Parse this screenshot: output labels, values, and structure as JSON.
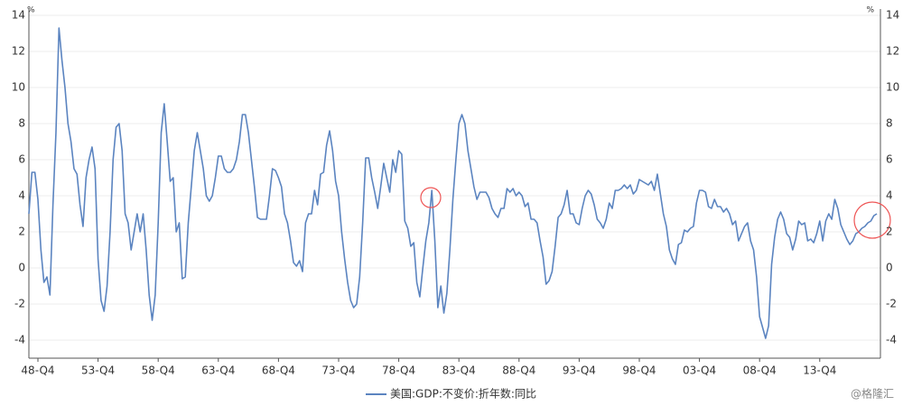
{
  "chart_data": {
    "type": "line",
    "unit": "%",
    "grid": true,
    "ylim": [
      -5,
      14
    ],
    "yticks": [
      -4,
      -2,
      0,
      2,
      4,
      6,
      8,
      10,
      12,
      14
    ],
    "watermark": "@格隆汇",
    "categories": [
      null,
      null,
      null,
      "48-Q4",
      null,
      null,
      null,
      null,
      null,
      null,
      null,
      null,
      null,
      null,
      null,
      null,
      null,
      null,
      null,
      null,
      null,
      null,
      null,
      "53-Q4",
      null,
      null,
      null,
      null,
      null,
      null,
      null,
      null,
      null,
      null,
      null,
      null,
      null,
      null,
      null,
      null,
      null,
      null,
      null,
      "58-Q4",
      null,
      null,
      null,
      null,
      null,
      null,
      null,
      null,
      null,
      null,
      null,
      null,
      null,
      null,
      null,
      null,
      null,
      null,
      null,
      "63-Q4",
      null,
      null,
      null,
      null,
      null,
      null,
      null,
      null,
      null,
      null,
      null,
      null,
      null,
      null,
      null,
      null,
      null,
      null,
      null,
      "68-Q4",
      null,
      null,
      null,
      null,
      null,
      null,
      null,
      null,
      null,
      null,
      null,
      null,
      null,
      null,
      null,
      null,
      null,
      null,
      null,
      "73-Q4",
      null,
      null,
      null,
      null,
      null,
      null,
      null,
      null,
      null,
      null,
      null,
      null,
      null,
      null,
      null,
      null,
      null,
      null,
      null,
      "78-Q4",
      null,
      null,
      null,
      null,
      null,
      null,
      null,
      null,
      null,
      null,
      null,
      null,
      null,
      null,
      null,
      null,
      null,
      null,
      null,
      "83-Q4",
      null,
      null,
      null,
      null,
      null,
      null,
      null,
      null,
      null,
      null,
      null,
      null,
      null,
      null,
      null,
      null,
      null,
      null,
      null,
      "88-Q4",
      null,
      null,
      null,
      null,
      null,
      null,
      null,
      null,
      null,
      null,
      null,
      null,
      null,
      null,
      null,
      null,
      null,
      null,
      null,
      "93-Q4",
      null,
      null,
      null,
      null,
      null,
      null,
      null,
      null,
      null,
      null,
      null,
      null,
      null,
      null,
      null,
      null,
      null,
      null,
      null,
      "98-Q4",
      null,
      null,
      null,
      null,
      null,
      null,
      null,
      null,
      null,
      null,
      null,
      null,
      null,
      null,
      null,
      null,
      null,
      null,
      null,
      "03-Q4",
      null,
      null,
      null,
      null,
      null,
      null,
      null,
      null,
      null,
      null,
      null,
      null,
      null,
      null,
      null,
      null,
      null,
      null,
      null,
      "08-Q4",
      null,
      null,
      null,
      null,
      null,
      null,
      null,
      null,
      null,
      null,
      null,
      null,
      null,
      null,
      null,
      null,
      null,
      null,
      null,
      "13-Q4",
      null,
      null,
      null,
      null,
      null,
      null,
      null,
      null,
      null,
      null,
      null,
      null,
      null,
      null,
      null,
      null,
      null,
      null,
      null
    ],
    "series": [
      {
        "name": "美国:GDP:不变价:折年数:同比",
        "color": "#5b84c0",
        "values": [
          3.0,
          5.3,
          5.3,
          3.8,
          1.0,
          -0.8,
          -0.5,
          -1.5,
          3.5,
          7.5,
          13.3,
          11.5,
          10.0,
          8.0,
          7.0,
          5.5,
          5.2,
          3.5,
          2.3,
          5.0,
          6.0,
          6.7,
          5.5,
          0.5,
          -1.8,
          -2.4,
          -1.0,
          2.0,
          6.0,
          7.8,
          8.0,
          6.5,
          3.0,
          2.5,
          1.0,
          2.0,
          3.0,
          2.0,
          3.0,
          1.0,
          -1.5,
          -2.9,
          -1.5,
          2.5,
          7.5,
          9.1,
          7.0,
          4.8,
          5.0,
          2.0,
          2.5,
          -0.6,
          -0.5,
          2.5,
          4.5,
          6.5,
          7.5,
          6.5,
          5.5,
          4.0,
          3.7,
          4.0,
          5.0,
          6.2,
          6.2,
          5.5,
          5.3,
          5.3,
          5.5,
          6.0,
          7.0,
          8.5,
          8.5,
          7.5,
          6.0,
          4.5,
          2.8,
          2.7,
          2.7,
          2.7,
          4.0,
          5.5,
          5.4,
          5.0,
          4.5,
          3.0,
          2.5,
          1.5,
          0.3,
          0.1,
          0.4,
          -0.2,
          2.5,
          3.0,
          3.0,
          4.3,
          3.5,
          5.2,
          5.3,
          6.8,
          7.6,
          6.5,
          4.8,
          4.0,
          2.0,
          0.5,
          -0.8,
          -1.8,
          -2.2,
          -2.0,
          -0.5,
          2.5,
          6.1,
          6.1,
          5.0,
          4.2,
          3.3,
          4.5,
          5.8,
          5.0,
          4.2,
          6.0,
          5.3,
          6.5,
          6.3,
          2.6,
          2.2,
          1.2,
          1.4,
          -0.8,
          -1.6,
          0.0,
          1.5,
          2.5,
          4.3,
          1.5,
          -2.2,
          -1.0,
          -2.5,
          -1.4,
          1.0,
          3.8,
          6.0,
          8.0,
          8.5,
          8.0,
          6.5,
          5.5,
          4.5,
          3.8,
          4.2,
          4.2,
          4.2,
          3.9,
          3.3,
          3.0,
          2.8,
          3.3,
          3.3,
          4.4,
          4.2,
          4.4,
          4.0,
          4.2,
          4.0,
          3.4,
          3.6,
          2.7,
          2.7,
          2.5,
          1.5,
          0.6,
          -0.9,
          -0.7,
          -0.2,
          1.2,
          2.8,
          3.0,
          3.5,
          4.3,
          3.0,
          3.0,
          2.5,
          2.4,
          3.3,
          4.0,
          4.3,
          4.1,
          3.5,
          2.7,
          2.5,
          2.2,
          2.7,
          3.6,
          3.3,
          4.3,
          4.3,
          4.4,
          4.6,
          4.4,
          4.6,
          4.1,
          4.3,
          4.9,
          4.8,
          4.7,
          4.6,
          4.8,
          4.3,
          5.2,
          4.1,
          3.0,
          2.3,
          1.0,
          0.5,
          0.2,
          1.3,
          1.4,
          2.1,
          2.0,
          2.2,
          2.3,
          3.6,
          4.3,
          4.3,
          4.2,
          3.4,
          3.3,
          3.8,
          3.4,
          3.4,
          3.1,
          3.3,
          3.0,
          2.4,
          2.6,
          1.5,
          1.9,
          2.3,
          2.5,
          1.5,
          1.0,
          -0.5,
          -2.7,
          -3.3,
          -3.9,
          -3.2,
          0.2,
          1.7,
          2.7,
          3.1,
          2.7,
          1.9,
          1.7,
          1.0,
          1.6,
          2.6,
          2.4,
          2.5,
          1.5,
          1.6,
          1.4,
          1.9,
          2.6,
          1.5,
          2.6,
          3.0,
          2.7,
          3.8,
          3.3,
          2.4,
          2.0,
          1.6,
          1.3,
          1.5,
          1.9,
          2.0,
          2.2,
          2.3,
          2.5,
          2.6,
          2.9,
          3.0
        ]
      }
    ]
  }
}
